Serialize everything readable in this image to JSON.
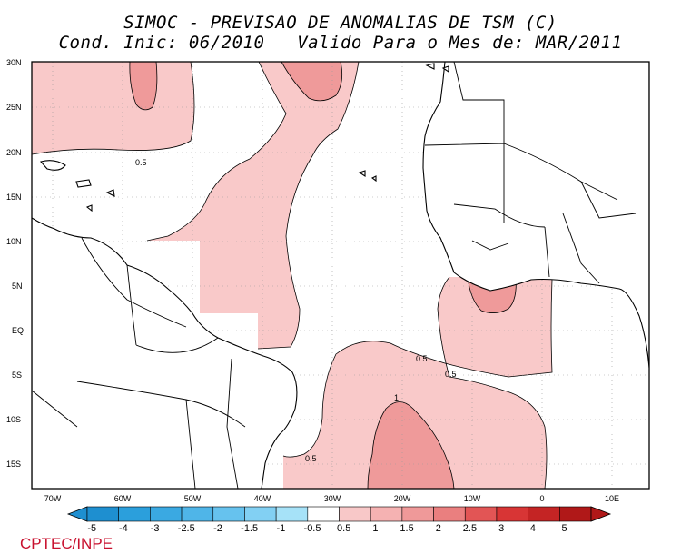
{
  "header": {
    "title": "SIMOC - PREVISAO DE ANOMALIAS DE TSM (C)",
    "subtitle": "Cond. Inic: 06/2010   Valido Para o Mes de: MAR/2011"
  },
  "map": {
    "lat_ticks": [
      "30N",
      "25N",
      "20N",
      "15N",
      "10N",
      "5N",
      "EQ",
      "5S",
      "10S",
      "15S"
    ],
    "lon_ticks": [
      "70W",
      "60W",
      "50W",
      "40W",
      "30W",
      "20W",
      "10W",
      "0",
      "10E"
    ],
    "contour_labels": [
      "0.5",
      "0.5",
      "0.5",
      "1",
      "0.5"
    ]
  },
  "colorbar": {
    "labels": [
      "-5",
      "-4",
      "-3",
      "-2.5",
      "-2",
      "-1.5",
      "-1",
      "-0.5",
      "0.5",
      "1",
      "1.5",
      "2",
      "2.5",
      "3",
      "4",
      "5"
    ],
    "colors": [
      "#1e8fd0",
      "#2b9fdc",
      "#3aa9e2",
      "#4fb5e8",
      "#66c2ee",
      "#82d0f3",
      "#a6e2f8",
      "#ffffff",
      "#f8c8c8",
      "#f5b2b2",
      "#ef9999",
      "#ea7f7f",
      "#e25555",
      "#d83535",
      "#c42424",
      "#b01818"
    ]
  },
  "credit": "CPTEC/INPE"
}
